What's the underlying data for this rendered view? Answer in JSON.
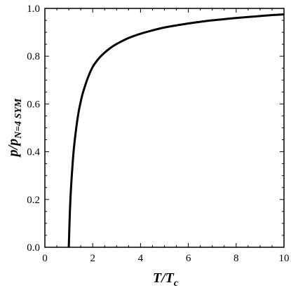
{
  "chart_data": {
    "type": "line",
    "xlabel": {
      "base": "T/T",
      "subscript": "c"
    },
    "ylabel": {
      "base": "p/p",
      "subscript": "N=4 SYM"
    },
    "xlim": [
      0,
      10
    ],
    "ylim": [
      0,
      1
    ],
    "x_ticks": [
      "0",
      "2",
      "4",
      "6",
      "8",
      "10"
    ],
    "y_ticks": [
      "0.0",
      "0.2",
      "0.4",
      "0.6",
      "0.8",
      "1.0"
    ],
    "grid": false,
    "legend": "none",
    "series": [
      {
        "color": "#000000",
        "points": [
          [
            1.0,
            0.0
          ],
          [
            1.05,
            0.16
          ],
          [
            1.1,
            0.26
          ],
          [
            1.2,
            0.4
          ],
          [
            1.3,
            0.49
          ],
          [
            1.4,
            0.56
          ],
          [
            1.5,
            0.61
          ],
          [
            1.6,
            0.65
          ],
          [
            1.8,
            0.71
          ],
          [
            2.0,
            0.755
          ],
          [
            2.25,
            0.79
          ],
          [
            2.5,
            0.815
          ],
          [
            2.75,
            0.835
          ],
          [
            3.0,
            0.851
          ],
          [
            3.5,
            0.876
          ],
          [
            4.0,
            0.894
          ],
          [
            4.5,
            0.908
          ],
          [
            5.0,
            0.92
          ],
          [
            5.5,
            0.929
          ],
          [
            6.0,
            0.937
          ],
          [
            6.5,
            0.944
          ],
          [
            7.0,
            0.95
          ],
          [
            7.5,
            0.955
          ],
          [
            8.0,
            0.96
          ],
          [
            8.5,
            0.964
          ],
          [
            9.0,
            0.968
          ],
          [
            9.5,
            0.972
          ],
          [
            10.0,
            0.975
          ]
        ]
      }
    ]
  }
}
